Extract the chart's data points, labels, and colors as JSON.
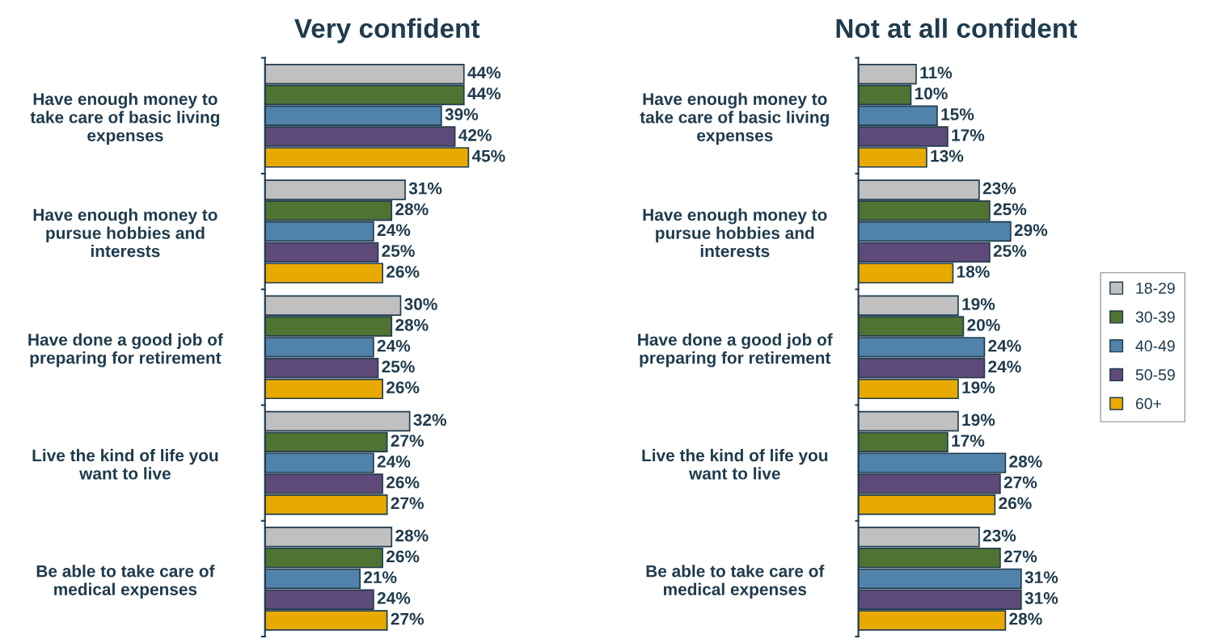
{
  "chart_data": [
    {
      "type": "bar",
      "orientation": "horizontal",
      "title": "Very confident",
      "categories": [
        "Have enough money to\ntake care of basic living\nexpenses",
        "Have enough money to\npursue hobbies and\ninterests",
        "Have done a good job of\npreparing for retirement",
        "Live the kind of life you\nwant to live",
        "Be able to take care of\nmedical expenses"
      ],
      "series": [
        {
          "color": "#c0c0c0",
          "values": [
            44,
            31,
            30,
            32,
            28
          ],
          "value_labels": [
            "44%",
            "31%",
            "30%",
            "32%",
            "28%"
          ]
        },
        {
          "color": "#4f7332",
          "values": [
            44,
            28,
            28,
            27,
            26
          ],
          "value_labels": [
            "44%",
            "28%",
            "28%",
            "27%",
            "26%"
          ]
        },
        {
          "color": "#5182aa",
          "values": [
            39,
            24,
            24,
            24,
            21
          ],
          "value_labels": [
            "39%",
            "24%",
            "24%",
            "24%",
            "21%"
          ]
        },
        {
          "color": "#5e4a78",
          "values": [
            42,
            25,
            25,
            26,
            24
          ],
          "value_labels": [
            "42%",
            "25%",
            "25%",
            "26%",
            "24%"
          ]
        },
        {
          "color": "#e8aa00",
          "values": [
            45,
            26,
            26,
            27,
            27
          ],
          "value_labels": [
            "45%",
            "26%",
            "26%",
            "27%",
            "27%"
          ]
        }
      ]
    },
    {
      "type": "bar",
      "orientation": "horizontal",
      "title": "Not at all confident",
      "legend": "right",
      "categories": [
        "Have enough money to\ntake care of basic living\nexpenses",
        "Have enough money to\npursue hobbies and\ninterests",
        "Have done a good job of\npreparing for retirement",
        "Live the kind of life you\nwant to live",
        "Be able to take care of\nmedical expenses"
      ],
      "series": [
        {
          "name": "18-29",
          "color": "#c0c0c0",
          "values": [
            11,
            23,
            19,
            19,
            23
          ],
          "value_labels": [
            "11%",
            "23%",
            "19%",
            "19%",
            "23%"
          ]
        },
        {
          "name": "30-39",
          "color": "#4f7332",
          "values": [
            10,
            25,
            20,
            17,
            27
          ],
          "value_labels": [
            "10%",
            "25%",
            "20%",
            "17%",
            "27%"
          ]
        },
        {
          "name": "40-49",
          "color": "#5182aa",
          "values": [
            15,
            29,
            24,
            28,
            31
          ],
          "value_labels": [
            "15%",
            "29%",
            "24%",
            "28%",
            "31%"
          ]
        },
        {
          "name": "50-59",
          "color": "#5e4a78",
          "values": [
            17,
            25,
            24,
            27,
            31
          ],
          "value_labels": [
            "17%",
            "25%",
            "24%",
            "27%",
            "31%"
          ]
        },
        {
          "name": "60+",
          "color": "#e8aa00",
          "values": [
            13,
            18,
            19,
            26,
            28
          ],
          "value_labels": [
            "13%",
            "18%",
            "19%",
            "26%",
            "28%"
          ]
        }
      ]
    }
  ]
}
